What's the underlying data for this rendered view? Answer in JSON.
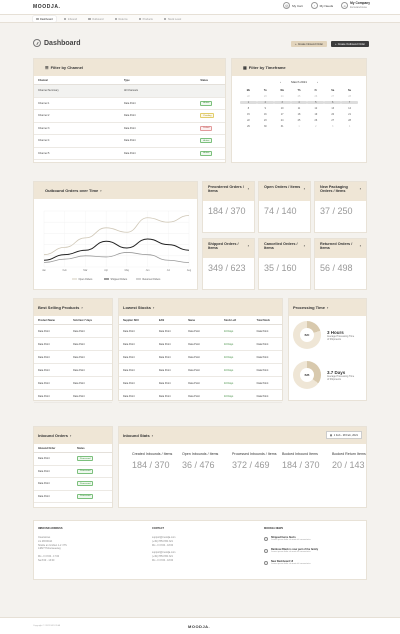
{
  "app": {
    "logo": "MOODJA."
  },
  "topbar": {
    "cart_label": "My Cart",
    "notifications_label": "My Needs",
    "company_name": "My Company",
    "company_sub": "Eurowarehouse"
  },
  "nav": {
    "items": [
      {
        "label": "Dashboard",
        "active": true
      },
      {
        "label": "Inbound"
      },
      {
        "label": "Outbound"
      },
      {
        "label": "Returns"
      },
      {
        "label": "Products"
      },
      {
        "label": "Stock Level"
      }
    ]
  },
  "page": {
    "title": "Dashboard",
    "create_inbound": "Create Inbound Order",
    "create_outbound": "Create Outbound Order"
  },
  "channel_filter": {
    "title": "Filter by Channel",
    "columns": [
      "Channel",
      "Type",
      "Status"
    ],
    "rows": [
      {
        "channel": "Channel Summary",
        "type": "All Channels",
        "status": "",
        "highlight": true
      },
      {
        "channel": "Channel 1",
        "type": "Data Point",
        "status": "Active",
        "tone": "green"
      },
      {
        "channel": "Channel 2",
        "type": "Data Point",
        "status": "Pending",
        "tone": "yellow"
      },
      {
        "channel": "Channel 3",
        "type": "Data Point",
        "status": "Failed",
        "tone": "red"
      },
      {
        "channel": "Channel 4",
        "type": "Data Point",
        "status": "Active",
        "tone": "green"
      },
      {
        "channel": "Channel 5",
        "type": "Data Point",
        "status": "Active",
        "tone": "green"
      }
    ]
  },
  "timeframe_filter": {
    "title": "Filter by Timeframe",
    "month": "March 2021",
    "prev": "‹",
    "next": "›",
    "weekdays": [
      "Mo",
      "Tu",
      "We",
      "Th",
      "Fr",
      "Sa",
      "Su"
    ],
    "days": [
      "22",
      "23",
      "24",
      "25",
      "26",
      "27",
      "28",
      "1",
      "2",
      "3",
      "4",
      "5",
      "6",
      "7",
      "8",
      "9",
      "10",
      "11",
      "12",
      "13",
      "14",
      "15",
      "16",
      "17",
      "18",
      "19",
      "20",
      "21",
      "22",
      "23",
      "24",
      "25",
      "26",
      "27",
      "28",
      "29",
      "30",
      "31",
      "1",
      "2",
      "3",
      "4"
    ]
  },
  "outbound_chart": {
    "title": "Outbound Orders over Time",
    "legend": [
      "Open Orders",
      "Shipped Orders",
      "Returned Orders"
    ]
  },
  "chart_data": {
    "type": "line",
    "categories": [
      "Jan",
      "Feb",
      "Mar",
      "Apr",
      "May",
      "Jun",
      "Jul",
      "Aug"
    ],
    "ylim": [
      0,
      100
    ],
    "series": [
      {
        "name": "Open Orders",
        "color": "#cfc7b6",
        "values": [
          22,
          35,
          52,
          70,
          62,
          88,
          80,
          92
        ]
      },
      {
        "name": "Shipped Orders",
        "color": "#222222",
        "values": [
          12,
          22,
          30,
          46,
          34,
          50,
          40,
          30
        ]
      },
      {
        "name": "Returned Orders",
        "color": "#9a9a9a",
        "values": [
          8,
          14,
          20,
          18,
          26,
          22,
          12,
          8
        ]
      }
    ],
    "grid": true
  },
  "stats": [
    {
      "title": "Preordered Orders / Items",
      "value": "184 / 370"
    },
    {
      "title": "Open Orders / Items",
      "value": "74 / 140"
    },
    {
      "title": "New Packaging Orders / Items",
      "value": "37 / 250"
    },
    {
      "title": "Shipped Orders / Items",
      "value": "349 / 623"
    },
    {
      "title": "Cancelled Orders / Items",
      "value": "35 / 160"
    },
    {
      "title": "Returned Orders / Items",
      "value": "56 / 498"
    }
  ],
  "best_selling": {
    "title": "Best Selling Products",
    "columns": [
      "Product Name",
      "Sold last 7 days"
    ],
    "rows": [
      [
        "Data Point",
        "Data Point"
      ],
      [
        "Data Point",
        "Data Point"
      ],
      [
        "Data Point",
        "Data Point"
      ],
      [
        "Data Point",
        "Data Point"
      ],
      [
        "Data Point",
        "Data Point"
      ],
      [
        "Data Point",
        "Data Point"
      ]
    ]
  },
  "lowest_stocks": {
    "title": "Lowest Stocks",
    "columns": [
      "Supplier SKU",
      "EAN",
      "Name",
      "Stock Left",
      "Total Stock"
    ],
    "rows": [
      [
        "Data Point",
        "Data Point",
        "Data Point",
        "10 Days",
        "Data Point"
      ],
      [
        "Data Point",
        "Data Point",
        "Data Point",
        "10 Days",
        "Data Point"
      ],
      [
        "Data Point",
        "Data Point",
        "Data Point",
        "10 Days",
        "Data Point"
      ],
      [
        "Data Point",
        "Data Point",
        "Data Point",
        "10 Days",
        "Data Point"
      ],
      [
        "Data Point",
        "Data Point",
        "Data Point",
        "10 Days",
        "Data Point"
      ],
      [
        "Data Point",
        "Data Point",
        "Data Point",
        "10 Days",
        "Data Point"
      ]
    ]
  },
  "processing": {
    "title": "Processing Time",
    "items": [
      {
        "code": "B2C",
        "value": "3 Hours",
        "label": "Average Processing Time of Shipments",
        "fraction": 0.2
      },
      {
        "code": "B2B",
        "value": "3.7 Days",
        "label": "Average Processing Time of Shipments",
        "fraction": 0.35
      }
    ]
  },
  "inbound_orders": {
    "title": "Inbound Orders",
    "columns": [
      "Inbound Order",
      "Status"
    ],
    "rows": [
      {
        "order": "Data Point",
        "status": "Processed"
      },
      {
        "order": "Data Point",
        "status": "Processed"
      },
      {
        "order": "Data Point",
        "status": "Processed"
      },
      {
        "order": "Data Point",
        "status": "Processed"
      }
    ]
  },
  "inbound_stats": {
    "title": "Inbound Stats",
    "date_range": "1 Feb - 28 Feb, 2021",
    "items": [
      {
        "label": "Created Inbounds / Items",
        "value": "184 / 370"
      },
      {
        "label": "Open Inbounds / Items",
        "value": "36 / 476"
      },
      {
        "label": "Processed Inbounds / Items",
        "value": "372 / 469"
      },
      {
        "label": "Booked Inbound Items",
        "value": "184 / 370"
      },
      {
        "label": "Booked Return Items",
        "value": "20 / 143"
      }
    ]
  },
  "footer": {
    "address_title": "INBOUND ADDRESS",
    "address_lines": [
      "Clearstores",
      "c/o MOODJA",
      "Straße an Großen 1-2 / HS",
      "14827 Hohenseeweg",
      "",
      "Mo - Fr 8:00 - 17:00",
      "Sa 8:00 - 13:00"
    ],
    "contact_title": "CONTACT",
    "contact_lines": [
      "support@moodja.com",
      "(+49) 7854 654 321",
      "Mo - Fr 8:00 - 18:00",
      "",
      "support@moodja.com",
      "(+49) 7854 654 321",
      "Mo - Fr 8:00 - 18:00"
    ],
    "news_title": "MOODJA NEWS",
    "news": [
      {
        "title": "Shipped Items Alerts",
        "sub": "Lorem ipsum dolor sit amet elit consectetur"
      },
      {
        "title": "Rainbow Black is now part of the family",
        "sub": "Lorem ipsum dolor sit amet elit consectetur"
      },
      {
        "title": "New Dashboard UI",
        "sub": "Lorem ipsum dolor sit amet elit consectetur"
      }
    ],
    "copyright": "Copyright © 2021 MOODJA",
    "logo": "MOODJA."
  }
}
